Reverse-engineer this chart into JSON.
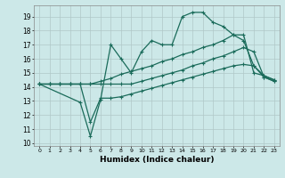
{
  "bg_color": "#cce8e8",
  "grid_color": "#b0c8c8",
  "line_color": "#1a6b5a",
  "xlabel": "Humidex (Indice chaleur)",
  "xlim": [
    -0.5,
    23.5
  ],
  "ylim": [
    9.8,
    19.8
  ],
  "xticks": [
    0,
    1,
    2,
    3,
    4,
    5,
    6,
    7,
    8,
    9,
    10,
    11,
    12,
    13,
    14,
    15,
    16,
    17,
    18,
    19,
    20,
    21,
    22,
    23
  ],
  "yticks": [
    10,
    11,
    12,
    13,
    14,
    15,
    16,
    17,
    18,
    19
  ],
  "line1_x": [
    0,
    1,
    2,
    3,
    4,
    5,
    6,
    7,
    8,
    9,
    10,
    11,
    12,
    13,
    14,
    15,
    16,
    17,
    18,
    19,
    20,
    21,
    22,
    23
  ],
  "line1_y": [
    14.2,
    14.2,
    14.2,
    14.2,
    14.2,
    14.2,
    14.2,
    14.2,
    14.2,
    14.2,
    14.4,
    14.6,
    14.8,
    15.0,
    15.2,
    15.5,
    15.7,
    16.0,
    16.2,
    16.5,
    16.8,
    16.5,
    14.7,
    14.4
  ],
  "line2_x": [
    0,
    1,
    2,
    3,
    4,
    5,
    6,
    7,
    8,
    9,
    10,
    11,
    12,
    13,
    14,
    15,
    16,
    17,
    18,
    19,
    20,
    21,
    22,
    23
  ],
  "line2_y": [
    14.2,
    14.2,
    14.2,
    14.2,
    14.2,
    14.2,
    14.4,
    14.6,
    14.9,
    15.1,
    15.3,
    15.5,
    15.8,
    16.0,
    16.3,
    16.5,
    16.8,
    17.0,
    17.3,
    17.7,
    17.3,
    15.5,
    14.8,
    14.5
  ],
  "line3_x": [
    0,
    4,
    5,
    6,
    7,
    8,
    9,
    10,
    11,
    12,
    13,
    14,
    15,
    16,
    17,
    18,
    19,
    20,
    21,
    22,
    23
  ],
  "line3_y": [
    14.2,
    12.9,
    10.5,
    13.1,
    17.0,
    16.0,
    15.0,
    16.5,
    17.3,
    17.0,
    17.0,
    19.0,
    19.3,
    19.3,
    18.6,
    18.3,
    17.7,
    17.7,
    15.0,
    14.8,
    14.5
  ],
  "line4_x": [
    0,
    1,
    2,
    3,
    4,
    5,
    6,
    7,
    8,
    9,
    10,
    11,
    12,
    13,
    14,
    15,
    16,
    17,
    18,
    19,
    20,
    21,
    22,
    23
  ],
  "line4_y": [
    14.2,
    14.2,
    14.2,
    14.2,
    14.2,
    11.5,
    13.2,
    13.2,
    13.3,
    13.5,
    13.7,
    13.9,
    14.1,
    14.3,
    14.5,
    14.7,
    14.9,
    15.1,
    15.3,
    15.5,
    15.6,
    15.5,
    14.7,
    14.4
  ]
}
